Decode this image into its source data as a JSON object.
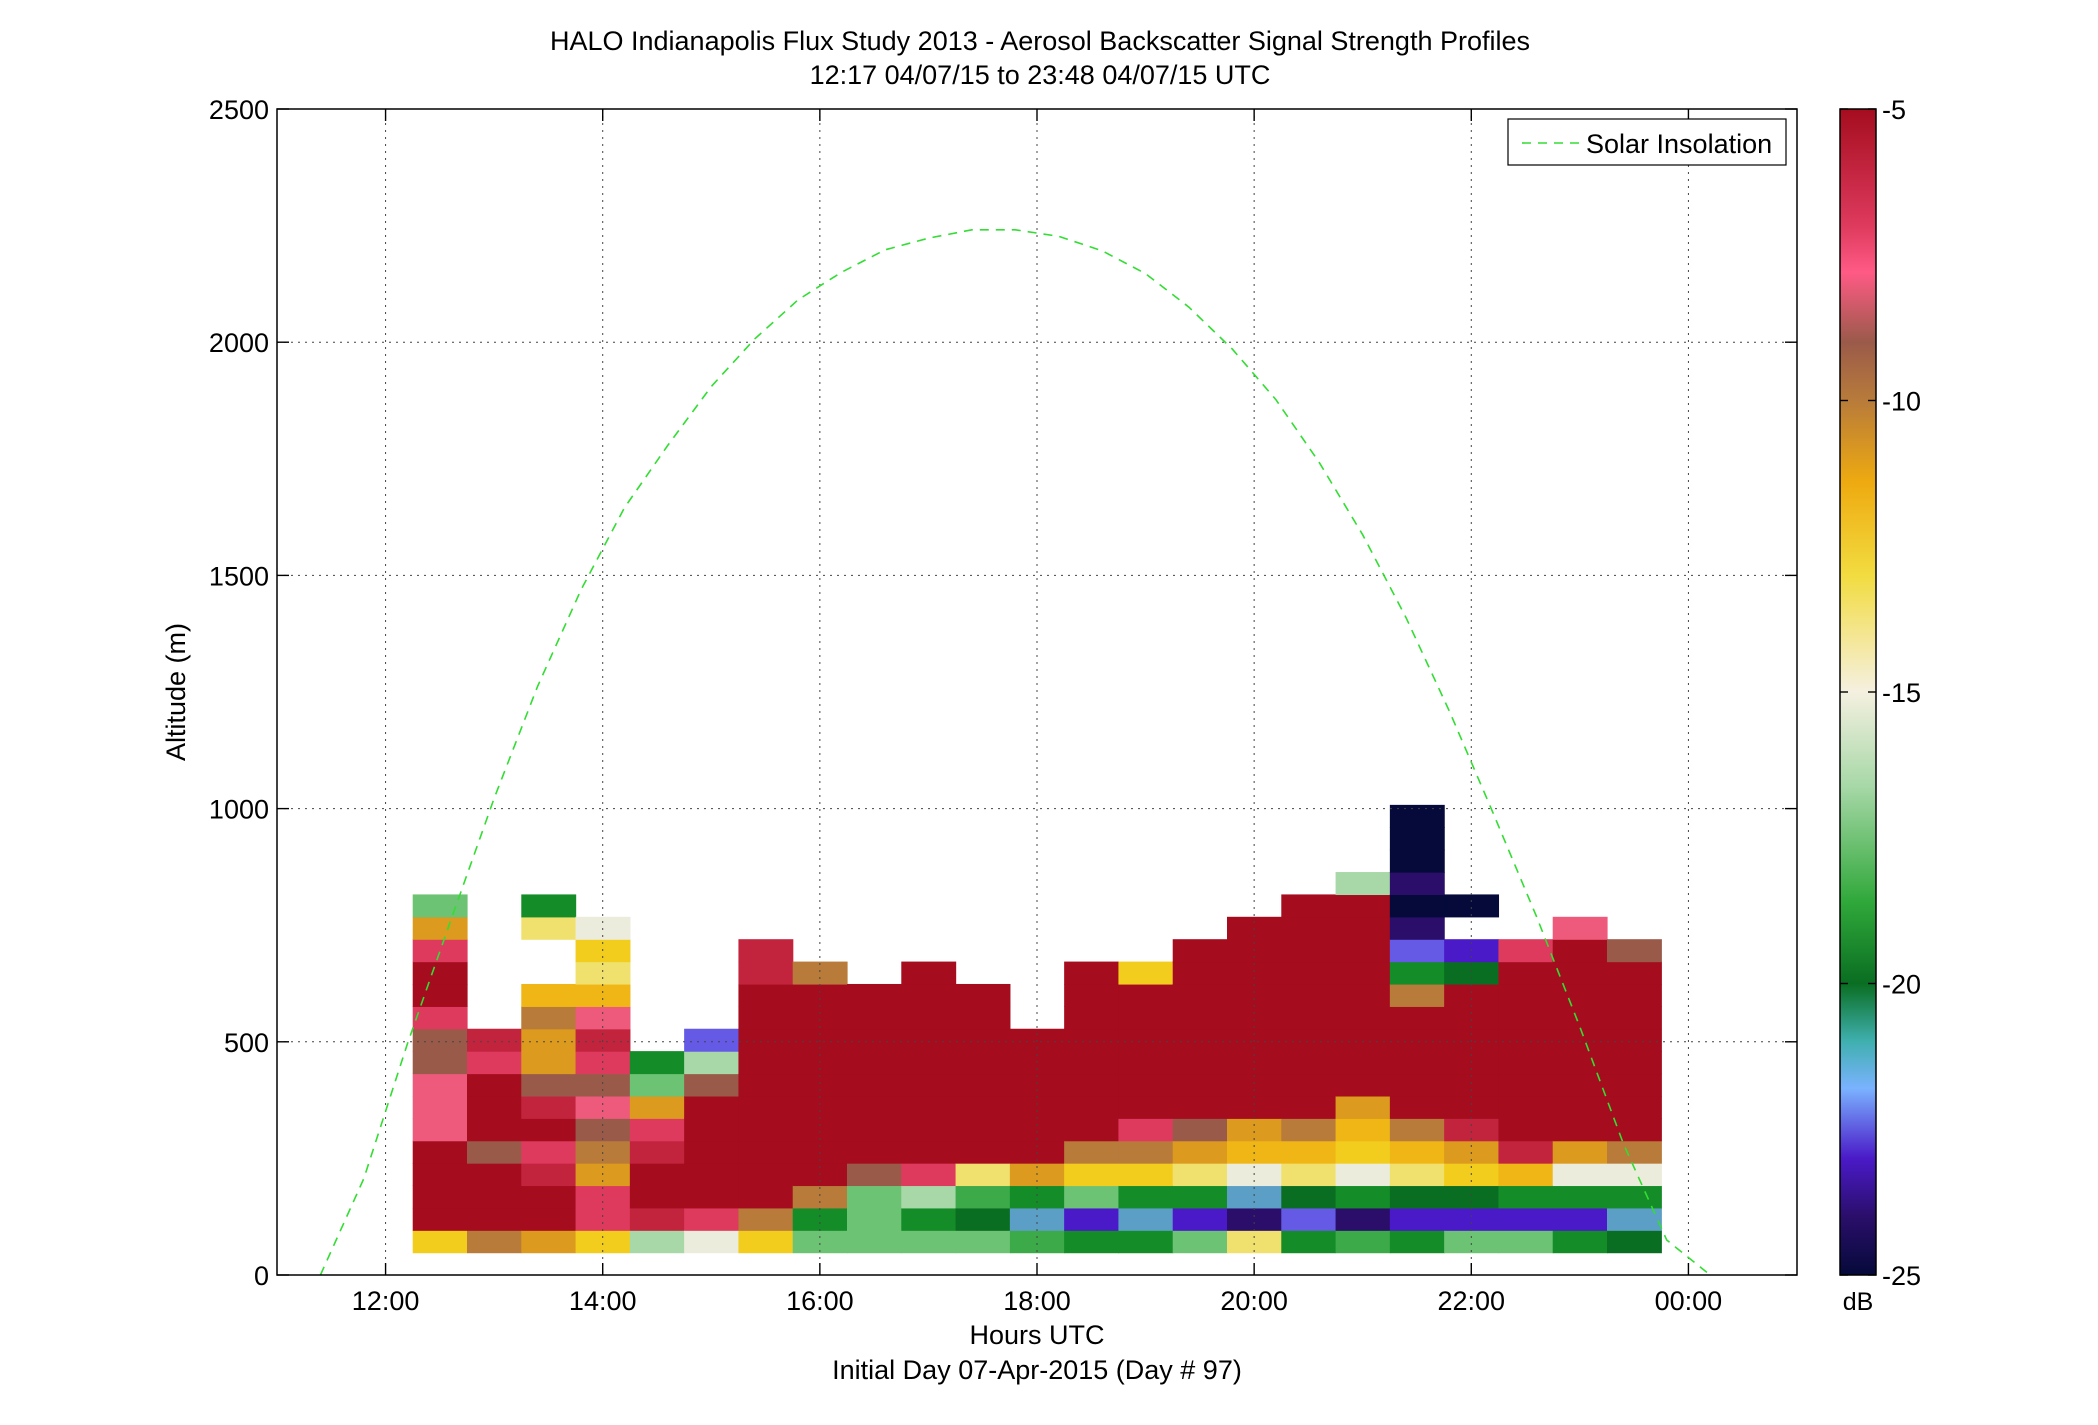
{
  "title_line1": "HALO Indianapolis Flux Study 2013 - Aerosol Backscatter Signal Strength Profiles",
  "title_line2": "12:17 04/07/15 to 23:48 04/07/15  UTC",
  "xlabel": "Hours UTC",
  "xlabel2": "Initial Day 07-Apr-2015 (Day # 97)",
  "ylabel": "Altitude (m)",
  "legend_label": "Solar Insolation",
  "colorbar_unit": "dB",
  "colors": {
    "solar_line": "#33dd33",
    "grid": "#444444"
  },
  "chart_data": {
    "type": "heatmap",
    "x_axis": {
      "range": [
        11.0,
        25.0
      ],
      "ticks": [
        12,
        14,
        16,
        18,
        20,
        22,
        24
      ],
      "tick_labels": [
        "12:00",
        "14:00",
        "16:00",
        "18:00",
        "20:00",
        "22:00",
        "00:00"
      ]
    },
    "y_axis": {
      "range": [
        0,
        2500
      ],
      "ticks": [
        0,
        500,
        1000,
        1500,
        2000,
        2500
      ],
      "tick_labels": [
        "0",
        "500",
        "1000",
        "1500",
        "2000",
        "2500"
      ]
    },
    "colorbar": {
      "range": [
        -25,
        -5
      ],
      "ticks": [
        -5,
        -10,
        -15,
        -20,
        -25
      ],
      "tick_labels": [
        "-5",
        "-10",
        "-15",
        "-20",
        "-25"
      ]
    },
    "grid": true,
    "legend_position": "top-right",
    "time_bin_hours": 0.5,
    "altitude_bin_m": 48,
    "altitude_bin_start_m": 48,
    "profiles": [
      {
        "time": 12.5,
        "values": [
          -13,
          -5,
          -5,
          -5,
          -5,
          -8,
          -8,
          -8,
          -9,
          -9,
          -7,
          -5,
          -5,
          -7,
          -11,
          -17
        ]
      },
      {
        "time": 13.0,
        "values": [
          -10,
          -5,
          -5,
          -5,
          -9,
          -5,
          -5,
          -5,
          -7,
          -6
        ]
      },
      {
        "time": 13.5,
        "values": [
          -11,
          -5,
          -5,
          -6,
          -7,
          -5,
          -6,
          -9,
          -11,
          -11,
          -10,
          -12,
          null,
          null,
          -14,
          -19
        ]
      },
      {
        "time": 14.0,
        "values": [
          -13,
          -7,
          -7,
          -11,
          -10,
          -9,
          -8,
          -9,
          -7,
          -6,
          -8,
          -12,
          -14,
          -13,
          -15
        ]
      },
      {
        "time": 14.5,
        "values": [
          -16,
          -6,
          -5,
          -5,
          -6,
          -7,
          -11,
          -17,
          -19
        ]
      },
      {
        "time": 15.0,
        "values": [
          -15,
          -7,
          -5,
          -5,
          -5,
          -5,
          -5,
          -9,
          -16,
          -22
        ]
      },
      {
        "time": 15.5,
        "values": [
          -13,
          -10,
          -5,
          -5,
          -5,
          -5,
          -5,
          -5,
          -5,
          -5,
          -5,
          -5,
          -6,
          -6
        ]
      },
      {
        "time": 16.0,
        "values": [
          -17,
          -19,
          -10,
          -5,
          -5,
          -5,
          -5,
          -5,
          -5,
          -5,
          -5,
          -5,
          -10
        ]
      },
      {
        "time": 16.5,
        "values": [
          -17,
          -17,
          -17,
          -9,
          -5,
          -5,
          -5,
          -5,
          -5,
          -5,
          -5,
          -5
        ]
      },
      {
        "time": 17.0,
        "values": [
          -17,
          -19,
          -16,
          -7,
          -5,
          -5,
          -5,
          -5,
          -5,
          -5,
          -5,
          -5,
          -5
        ]
      },
      {
        "time": 17.5,
        "values": [
          -17,
          -20,
          -18,
          -14,
          -5,
          -5,
          -5,
          -5,
          -5,
          -5,
          -5,
          -5
        ]
      },
      {
        "time": 18.0,
        "values": [
          -18,
          -21,
          -19,
          -11,
          -5,
          -5,
          -5,
          -5,
          -5,
          -5
        ]
      },
      {
        "time": 18.5,
        "values": [
          -19,
          -23,
          -17,
          -13,
          -10,
          -5,
          -5,
          -5,
          -5,
          -5,
          -5,
          -5,
          -5
        ]
      },
      {
        "time": 19.0,
        "values": [
          -19,
          -21,
          -19,
          -13,
          -10,
          -7,
          -5,
          -5,
          -5,
          -5,
          -5,
          -5,
          -13
        ]
      },
      {
        "time": 19.5,
        "values": [
          -17,
          -23,
          -19,
          -14,
          -11,
          -9,
          -5,
          -5,
          -5,
          -5,
          -5,
          -5,
          -5,
          -5
        ]
      },
      {
        "time": 20.0,
        "values": [
          -14,
          -24,
          -21,
          -15,
          -12,
          -11,
          -5,
          -5,
          -5,
          -5,
          -5,
          -5,
          -5,
          -5,
          -5
        ]
      },
      {
        "time": 20.5,
        "values": [
          -19,
          -22,
          -20,
          -14,
          -12,
          -10,
          -5,
          -5,
          -5,
          -5,
          -5,
          -5,
          -5,
          -5,
          -5,
          -5
        ]
      },
      {
        "time": 21.0,
        "values": [
          -18,
          -24,
          -19,
          -15,
          -13,
          -12,
          -11,
          -5,
          -5,
          -5,
          -5,
          -5,
          -5,
          -5,
          -5,
          -5,
          -16
        ]
      },
      {
        "time": 21.5,
        "values": [
          -19,
          -23,
          -20,
          -14,
          -12,
          -10,
          -5,
          -5,
          -5,
          -5,
          -5,
          -10,
          -19,
          -22,
          -24,
          -25,
          -24,
          -25,
          -25,
          -25
        ]
      },
      {
        "time": 22.0,
        "values": [
          -17,
          -23,
          -20,
          -13,
          -11,
          -6,
          -5,
          -5,
          -5,
          -5,
          -5,
          -5,
          -20,
          -23,
          null,
          -25
        ]
      },
      {
        "time": 22.5,
        "values": [
          -17,
          -23,
          -19,
          -12,
          -6,
          -5,
          -5,
          -5,
          -5,
          -5,
          -5,
          -5,
          -5,
          -7
        ]
      },
      {
        "time": 23.0,
        "values": [
          -19,
          -23,
          -19,
          -15,
          -11,
          -5,
          -5,
          -5,
          -5,
          -5,
          -5,
          -5,
          -5,
          -5,
          -8
        ]
      },
      {
        "time": 23.5,
        "values": [
          -20,
          -21,
          -19,
          -15,
          -10,
          -5,
          -5,
          -5,
          -5,
          -5,
          -5,
          -5,
          -5,
          -9
        ]
      }
    ],
    "series": [
      {
        "name": "Solar Insolation",
        "type": "line",
        "x": [
          11.4,
          11.8,
          12.2,
          12.6,
          13.0,
          13.4,
          13.8,
          14.2,
          14.6,
          15.0,
          15.4,
          15.8,
          16.2,
          16.6,
          17.0,
          17.4,
          17.8,
          18.2,
          18.6,
          19.0,
          19.4,
          19.8,
          20.2,
          20.6,
          21.0,
          21.4,
          21.8,
          22.2,
          22.6,
          23.0,
          23.4,
          23.8,
          24.2
        ],
        "y": [
          0,
          207,
          495,
          760,
          1022,
          1262,
          1469,
          1645,
          1779,
          1905,
          2007,
          2091,
          2150,
          2198,
          2223,
          2241,
          2241,
          2227,
          2196,
          2147,
          2075,
          1985,
          1877,
          1742,
          1587,
          1409,
          1208,
          991,
          769,
          532,
          282,
          75,
          0
        ]
      }
    ]
  }
}
